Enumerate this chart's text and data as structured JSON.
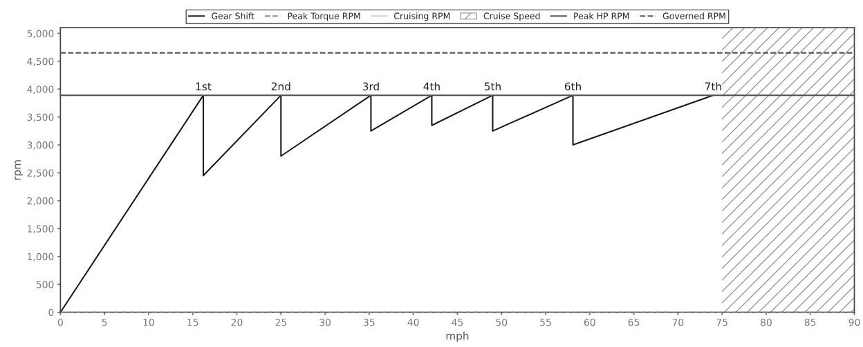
{
  "chart_data": {
    "type": "line",
    "xlabel": "mph",
    "ylabel": "rpm",
    "xlim": [
      0,
      90
    ],
    "xticks": [
      0,
      5,
      10,
      15,
      20,
      25,
      30,
      35,
      40,
      45,
      50,
      55,
      60,
      65,
      70,
      75,
      80,
      85,
      90
    ],
    "ylim": [
      0,
      5100
    ],
    "yticks": [
      0,
      500,
      {
        "value": 1000,
        "label": "1,000"
      },
      {
        "value": 1500,
        "label": "1,500"
      },
      {
        "value": 2000,
        "label": "2,000"
      },
      {
        "value": 2500,
        "label": "2,500"
      },
      {
        "value": 3000,
        "label": "3,000"
      },
      {
        "value": 3500,
        "label": "3,500"
      },
      {
        "value": 4000,
        "label": "4,000"
      },
      {
        "value": 4500,
        "label": "4,500"
      },
      {
        "value": 5000,
        "label": "5,000"
      }
    ],
    "grid": false,
    "legend": "top",
    "marker": "none",
    "series": [
      {
        "name": "Gear Shift",
        "color": "#1a1a1a",
        "line_style": "solid",
        "x": [
          0,
          16.2,
          16.2,
          25,
          25,
          35.2,
          35.2,
          42.1,
          42.1,
          49,
          49,
          58.1,
          58.1,
          74
        ],
        "values": [
          0,
          3890,
          2450,
          3890,
          2800,
          3890,
          3250,
          3890,
          3350,
          3890,
          3250,
          3890,
          3000,
          3890
        ]
      },
      {
        "name": "Peak Torque RPM",
        "color": "#888888",
        "line_style": "dashed",
        "x": [
          0,
          90
        ],
        "values": [
          0,
          0
        ]
      },
      {
        "name": "Cruising RPM",
        "color": "#d0d0d0",
        "line_style": "solid"
      },
      {
        "name": "Peak HP RPM",
        "color": "#555555",
        "line_style": "solid",
        "x": [
          0,
          90
        ],
        "values": [
          3890,
          3890
        ]
      },
      {
        "name": "Governed RPM",
        "color": "#555555",
        "line_style": "dashed",
        "x": [
          0,
          90
        ],
        "values": [
          4650,
          4650
        ]
      }
    ],
    "bands": [
      {
        "axis": "x",
        "from": 75,
        "to": 90,
        "label": "Cruise Speed",
        "color": "#999999"
      }
    ],
    "annotations": [
      {
        "text": "1st",
        "x": 16.2,
        "y": 3890
      },
      {
        "text": "2nd",
        "x": 25,
        "y": 3890
      },
      {
        "text": "3rd",
        "x": 35.2,
        "y": 3890
      },
      {
        "text": "4th",
        "x": 42.1,
        "y": 3890
      },
      {
        "text": "5th",
        "x": 49,
        "y": 3890
      },
      {
        "text": "6th",
        "x": 58.1,
        "y": 3890
      },
      {
        "text": "7th",
        "x": 74,
        "y": 3890
      }
    ]
  }
}
